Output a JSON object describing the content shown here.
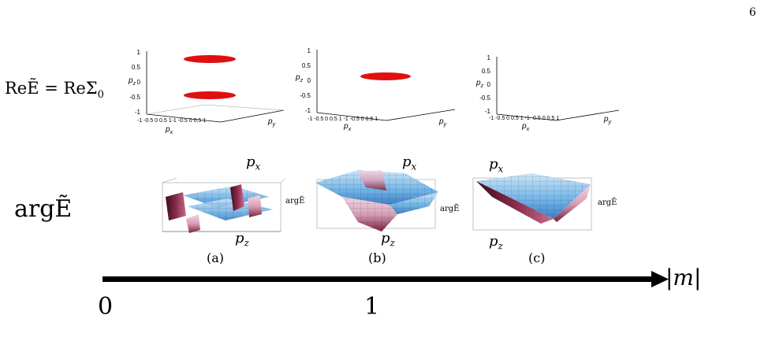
{
  "page_number": "6",
  "row_labels": {
    "top": "ReẼ = ReΣ",
    "top_sub": "0",
    "middle": "argẼ"
  },
  "top_plots": {
    "z_ticks": [
      "1",
      "0.5",
      "0",
      "-0.5",
      "-1"
    ],
    "axis_labels": {
      "pz": "p",
      "pz_sub": "z",
      "px": "p",
      "px_sub": "x",
      "py": "p",
      "py_sub": "y"
    },
    "plot_a_ticks": "-1   -0.5  0    0.5    1-1  -0.5   0   0.5  1",
    "plot_b_ticks": "-1 -0.5  0    0.5    1 -1 -0.5  0  0.5  1",
    "plot_c_ticks": "-1 -0.5  0    0.5    1 -1 -0.5  0  0.5  1"
  },
  "surface_plots": {
    "labels": {
      "px": "p",
      "px_sub": "x",
      "pz": "p",
      "pz_sub": "z",
      "arg": "argẼ"
    },
    "captions": [
      "(a)",
      "(b)",
      "(c)"
    ]
  },
  "axis": {
    "label": "|m|",
    "tick_0": "0",
    "tick_1": "1",
    "arrow_color": "#000000"
  },
  "colors": {
    "red_disk": "#e01010",
    "surface_blue": "#6fb2e6",
    "surface_pink": "#d9a0b8",
    "surface_dark": "#7a1f3a"
  }
}
